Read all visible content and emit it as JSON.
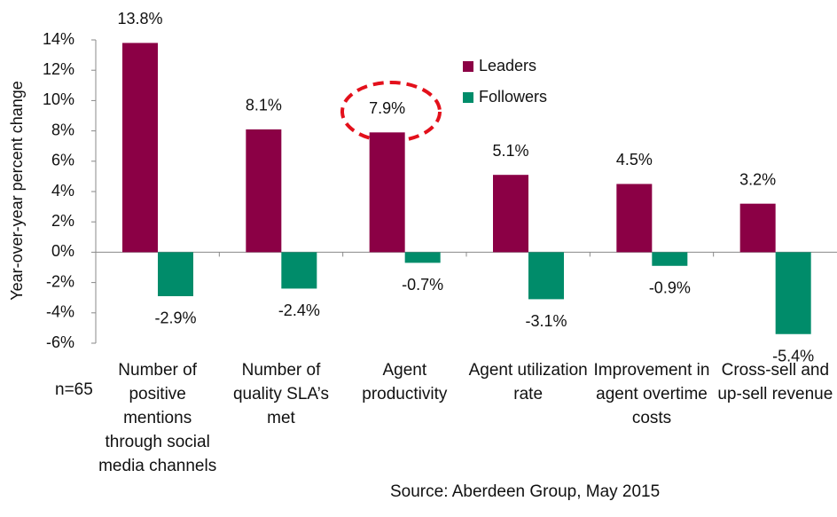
{
  "chart_data": {
    "type": "bar",
    "y_label": "Year-over-year percent change",
    "categories": [
      "Number of positive mentions through social media channels",
      "Number of quality SLA’s met",
      "Agent productivity",
      "Agent utilization rate",
      "Improvement in agent overtime costs",
      "Cross-sell and up-sell revenue"
    ],
    "series": [
      {
        "name": "Leaders",
        "color": "#8b0045",
        "values": [
          13.8,
          8.1,
          7.9,
          5.1,
          4.5,
          3.2
        ],
        "value_labels": [
          "13.8%",
          "8.1%",
          "7.9%",
          "5.1%",
          "4.5%",
          "3.2%"
        ]
      },
      {
        "name": "Followers",
        "color": "#008c6a",
        "values": [
          -2.9,
          -2.4,
          -0.7,
          -3.1,
          -0.9,
          -5.4
        ],
        "value_labels": [
          "-2.9%",
          "-2.4%",
          "-0.7%",
          "-3.1%",
          "-0.9%",
          "-5.4%"
        ]
      }
    ],
    "ylim": [
      -6,
      14
    ],
    "yticks": [
      {
        "value": -6,
        "label": "-6%"
      },
      {
        "value": -4,
        "label": "-4%"
      },
      {
        "value": -2,
        "label": "-2%"
      },
      {
        "value": 0,
        "label": "0%"
      },
      {
        "value": 2,
        "label": "2%"
      },
      {
        "value": 4,
        "label": "4%"
      },
      {
        "value": 6,
        "label": "6%"
      },
      {
        "value": 8,
        "label": "8%"
      },
      {
        "value": 10,
        "label": "10%"
      },
      {
        "value": 12,
        "label": "12%"
      },
      {
        "value": 14,
        "label": "14%"
      }
    ],
    "legend": "top-right",
    "annotations": [
      "n=65",
      "Source: Aberdeen Group, May 2015"
    ]
  }
}
